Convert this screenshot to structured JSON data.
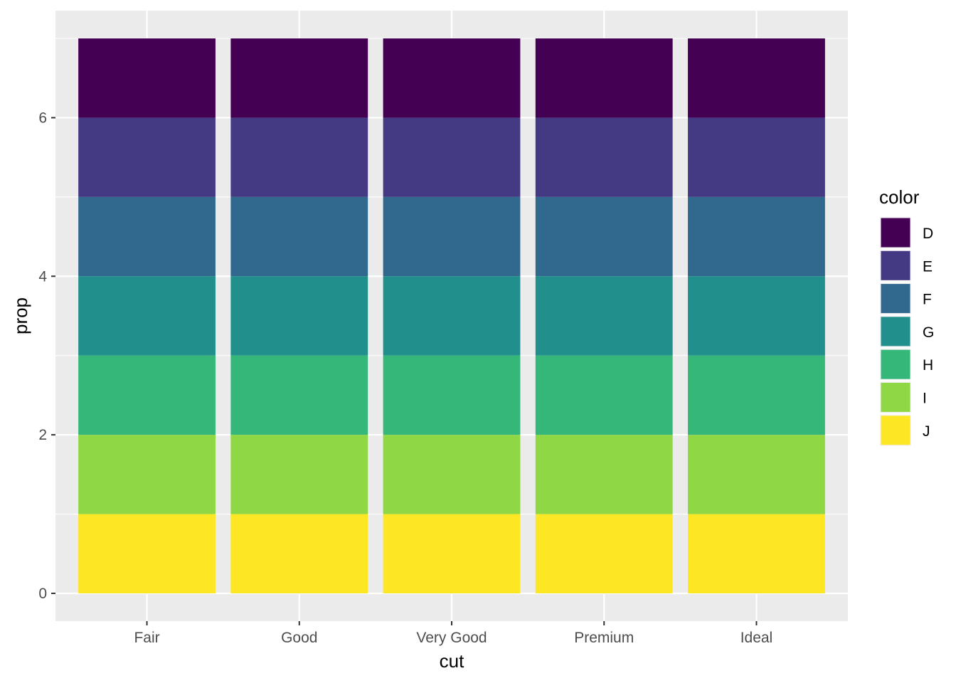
{
  "chart_data": {
    "type": "bar",
    "stacked": true,
    "categories": [
      "Fair",
      "Good",
      "Very Good",
      "Premium",
      "Ideal"
    ],
    "series": [
      {
        "name": "D",
        "color": "#440154",
        "values": [
          1,
          1,
          1,
          1,
          1
        ]
      },
      {
        "name": "E",
        "color": "#443A83",
        "values": [
          1,
          1,
          1,
          1,
          1
        ]
      },
      {
        "name": "F",
        "color": "#31688E",
        "values": [
          1,
          1,
          1,
          1,
          1
        ]
      },
      {
        "name": "G",
        "color": "#21908C",
        "values": [
          1,
          1,
          1,
          1,
          1
        ]
      },
      {
        "name": "H",
        "color": "#35B779",
        "values": [
          1,
          1,
          1,
          1,
          1
        ]
      },
      {
        "name": "I",
        "color": "#8FD744",
        "values": [
          1,
          1,
          1,
          1,
          1
        ]
      },
      {
        "name": "J",
        "color": "#FDE725",
        "values": [
          1,
          1,
          1,
          1,
          1
        ]
      }
    ],
    "xlabel": "cut",
    "ylabel": "prop",
    "ylim": [
      -0.35,
      7.35
    ],
    "yticks": [
      0,
      2,
      4,
      6
    ],
    "yticklabels": [
      "0",
      "2",
      "4",
      "6"
    ],
    "grid": true,
    "legend": {
      "title": "color",
      "position": "right"
    },
    "panel_background": "#EBEBEB",
    "gridline_color": "#FFFFFF"
  }
}
